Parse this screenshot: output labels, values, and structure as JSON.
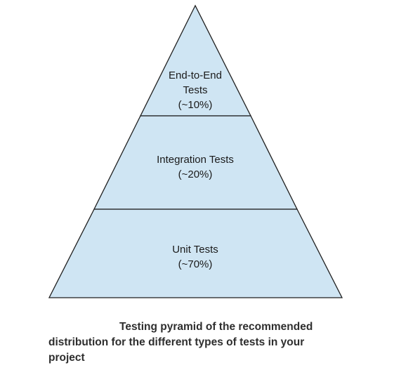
{
  "colors": {
    "tier_fill": "#cfe5f3",
    "outline": "#1f1f1f",
    "caption_text": "#2e2e2e"
  },
  "tiers": [
    {
      "name": "End-to-End Tests",
      "line1": "End-to-End",
      "line2": "Tests",
      "share": "(~10%)"
    },
    {
      "name": "Integration Tests",
      "line1": "Integration Tests",
      "share": "(~20%)"
    },
    {
      "name": "Unit Tests",
      "line1": "Unit Tests",
      "share": "(~70%)"
    }
  ],
  "caption": "Testing pyramid of the recommended distribution for the different types of tests in your project"
}
